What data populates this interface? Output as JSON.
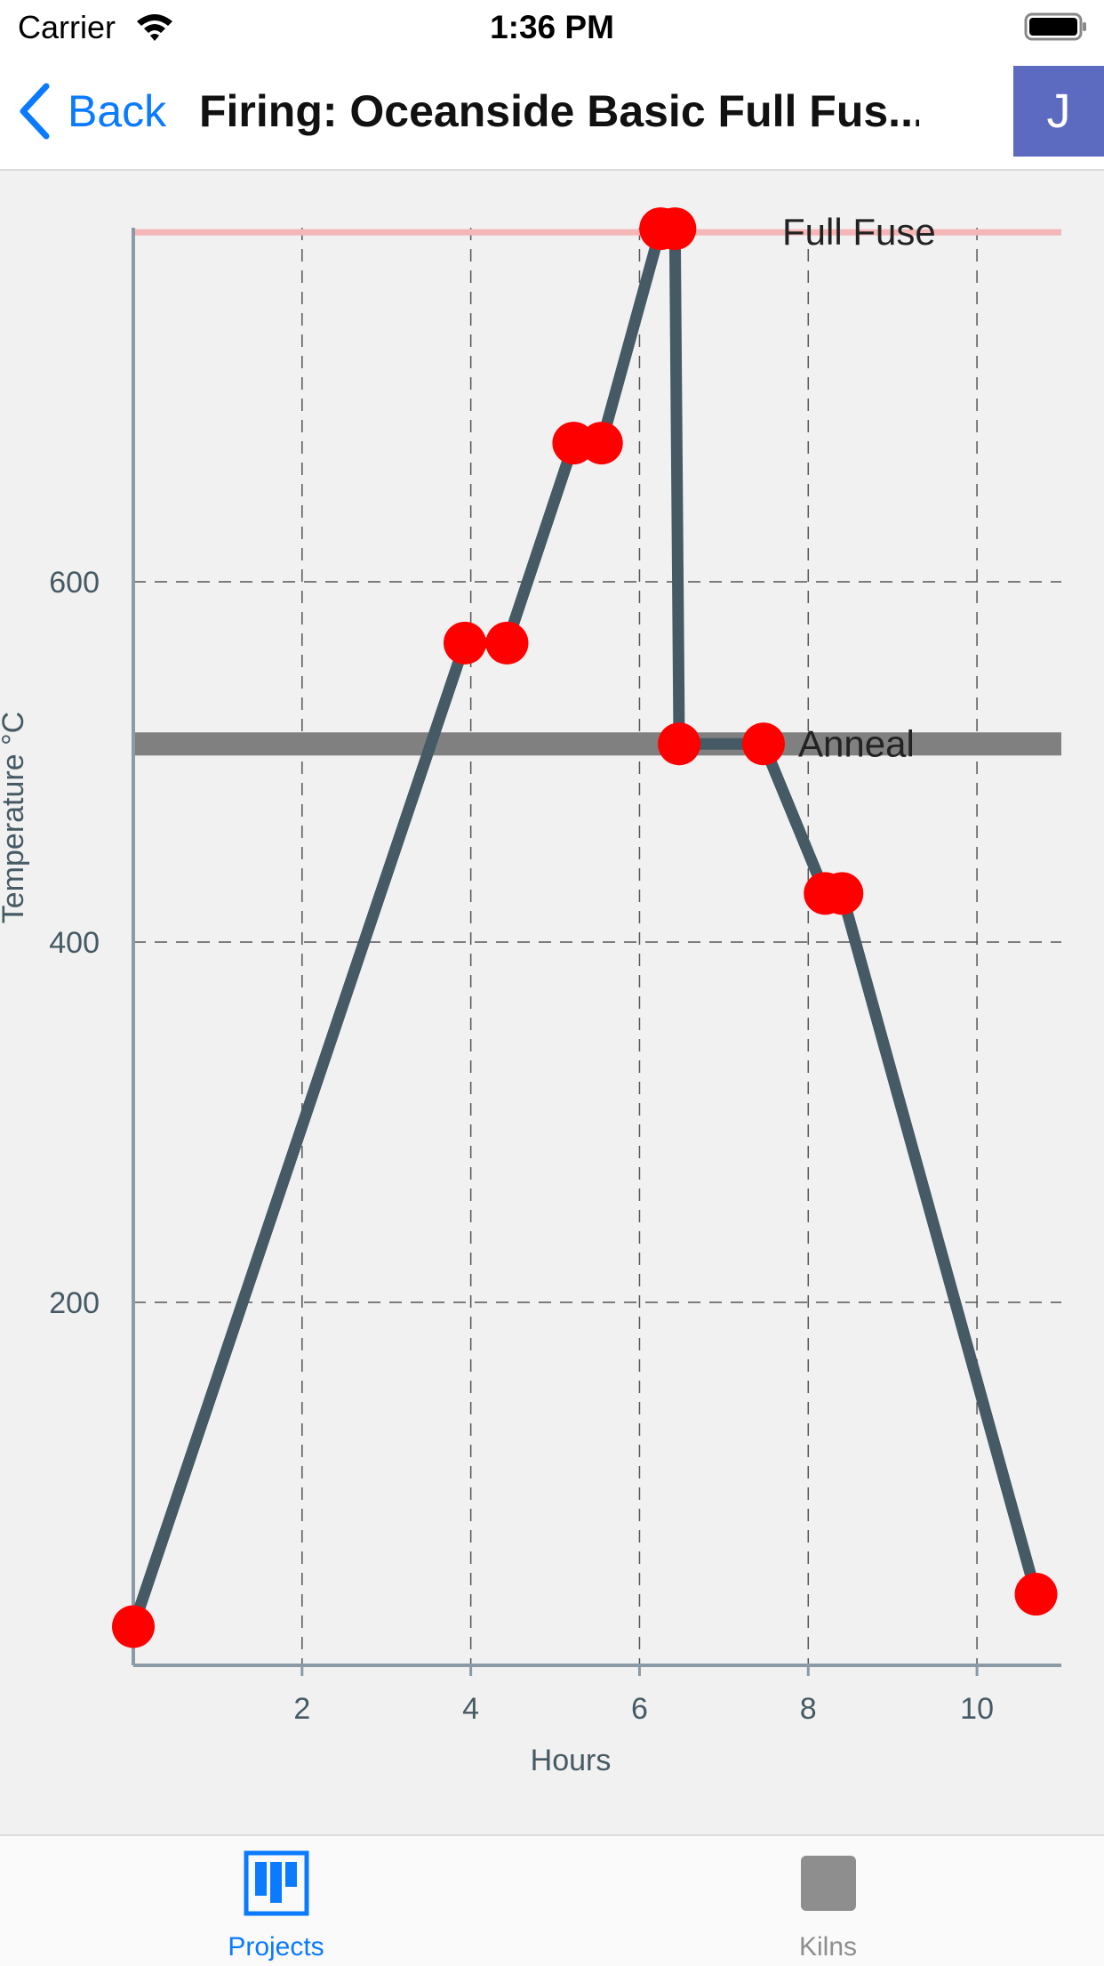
{
  "status_bar": {
    "carrier": "Carrier",
    "time": "1:36 PM"
  },
  "nav": {
    "back_label": "Back",
    "title": "Firing: Oceanside Basic Full Fus...",
    "avatar_initial": "J",
    "avatar_color": "#5c6bc0",
    "accent_color": "#0a7aff"
  },
  "chart_data": {
    "type": "line",
    "xlabel": "Hours",
    "ylabel": "Temperature °C",
    "x_ticks": [
      2,
      4,
      6,
      8,
      10
    ],
    "y_ticks": [
      200,
      400,
      600
    ],
    "xlim": [
      0,
      11
    ],
    "ylim": [
      0,
      796
    ],
    "grid": true,
    "line_color": "#455a64",
    "marker_color": "#ff0000",
    "points": [
      {
        "x": 0.0,
        "y": 20
      },
      {
        "x": 3.93,
        "y": 566
      },
      {
        "x": 4.43,
        "y": 566
      },
      {
        "x": 5.22,
        "y": 677
      },
      {
        "x": 5.55,
        "y": 677
      },
      {
        "x": 6.25,
        "y": 796
      },
      {
        "x": 6.42,
        "y": 796
      },
      {
        "x": 6.47,
        "y": 510
      },
      {
        "x": 7.47,
        "y": 510
      },
      {
        "x": 8.2,
        "y": 427
      },
      {
        "x": 8.4,
        "y": 427
      },
      {
        "x": 10.7,
        "y": 38
      }
    ],
    "reference_lines": [
      {
        "label": "Full Fuse",
        "y": 794,
        "color": "#f4b6b6"
      },
      {
        "label": "Anneal",
        "y": 510,
        "color": "#808080"
      }
    ]
  },
  "tabs": [
    {
      "label": "Projects",
      "active": true
    },
    {
      "label": "Kilns",
      "active": false
    }
  ]
}
